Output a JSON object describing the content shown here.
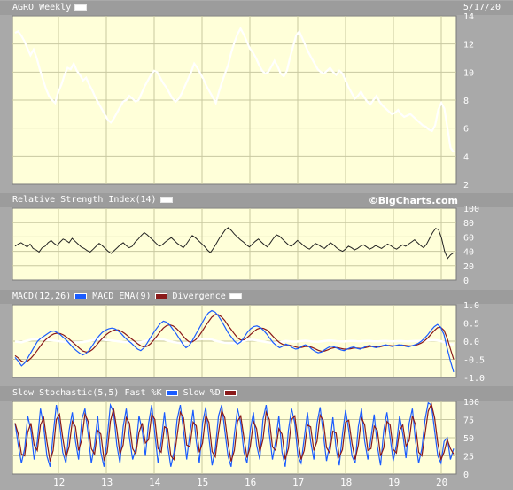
{
  "header": {
    "title": "AGRO Weekly",
    "date": "5/17/20",
    "brand": "©BigCharts.com"
  },
  "panels": {
    "rsi": {
      "title": "Relative Strength Index(14)"
    },
    "macd": {
      "title": "MACD(12,26)",
      "legend_ema": "MACD EMA(9)",
      "legend_div": "Divergence"
    },
    "stoch": {
      "title": "Slow Stochastic(5,5)",
      "legend_fast": "Fast %K",
      "legend_slow": "Slow %D"
    }
  },
  "colors": {
    "plot_bg": "#ffffd9",
    "grid": "#c8c8a0",
    "price": "#ffffff",
    "macd": "#1a5cff",
    "ema": "#8a1a1a",
    "fast": "#1a5cff",
    "slow": "#8a1a1a"
  },
  "x_axis": {
    "labels": [
      "12",
      "13",
      "14",
      "15",
      "16",
      "17",
      "18",
      "19",
      "20"
    ]
  },
  "chart_data": [
    {
      "type": "line",
      "name_key": "price",
      "ylim": [
        2,
        14
      ],
      "yticks": [
        "14",
        "12",
        "10",
        "8",
        "6",
        "4",
        "2"
      ],
      "values": [
        12.8,
        12.9,
        12.6,
        12.2,
        11.7,
        11.2,
        11.6,
        11.0,
        10.2,
        9.5,
        8.8,
        8.3,
        8.0,
        7.8,
        8.6,
        9.1,
        9.8,
        10.3,
        10.2,
        10.6,
        10.1,
        9.8,
        9.4,
        9.6,
        9.1,
        8.7,
        8.2,
        7.8,
        7.4,
        7.0,
        6.6,
        6.4,
        6.7,
        7.1,
        7.5,
        7.9,
        8.0,
        8.3,
        8.1,
        7.9,
        8.0,
        8.5,
        9.0,
        9.4,
        9.8,
        10.1,
        10.0,
        9.6,
        9.2,
        8.9,
        8.5,
        8.1,
        7.9,
        8.1,
        8.5,
        9.0,
        9.5,
        10.0,
        10.6,
        10.3,
        9.9,
        9.5,
        9.0,
        8.6,
        8.2,
        7.8,
        8.6,
        9.3,
        9.9,
        10.5,
        11.4,
        12.1,
        12.7,
        13.1,
        12.7,
        12.2,
        11.7,
        11.4,
        11.0,
        10.5,
        10.1,
        9.9,
        10.0,
        10.4,
        10.8,
        10.4,
        9.9,
        9.7,
        10.1,
        11.0,
        11.8,
        12.6,
        12.9,
        12.4,
        11.9,
        11.4,
        11.0,
        10.6,
        10.2,
        10.0,
        9.9,
        10.1,
        10.3,
        10.0,
        9.8,
        10.1,
        9.9,
        9.4,
        8.9,
        8.5,
        8.1,
        8.3,
        8.6,
        8.2,
        7.9,
        7.7,
        8.0,
        8.3,
        7.9,
        7.6,
        7.4,
        7.2,
        7.0,
        7.1,
        7.3,
        7.0,
        6.8,
        6.9,
        7.0,
        6.8,
        6.6,
        6.4,
        6.2,
        6.1,
        5.9,
        5.8,
        6.2,
        7.3,
        7.8,
        7.4,
        6.0,
        4.6,
        4.3
      ]
    },
    {
      "type": "line",
      "name_key": "rsi",
      "ylim": [
        0,
        100
      ],
      "yticks": [
        "100",
        "80",
        "60",
        "40",
        "20",
        "0"
      ],
      "values": [
        47,
        50,
        52,
        49,
        46,
        50,
        44,
        42,
        39,
        45,
        47,
        52,
        55,
        51,
        48,
        53,
        57,
        55,
        52,
        58,
        54,
        50,
        46,
        44,
        41,
        39,
        43,
        47,
        51,
        48,
        44,
        40,
        37,
        41,
        45,
        49,
        52,
        48,
        45,
        47,
        53,
        57,
        62,
        66,
        63,
        59,
        55,
        51,
        47,
        49,
        53,
        56,
        59,
        55,
        51,
        48,
        45,
        50,
        56,
        62,
        59,
        55,
        51,
        47,
        42,
        38,
        44,
        51,
        58,
        64,
        70,
        73,
        69,
        64,
        60,
        56,
        53,
        49,
        46,
        50,
        54,
        57,
        53,
        49,
        46,
        52,
        58,
        63,
        61,
        57,
        53,
        49,
        47,
        51,
        55,
        52,
        48,
        45,
        43,
        47,
        51,
        49,
        46,
        44,
        48,
        52,
        49,
        45,
        42,
        40,
        43,
        47,
        45,
        42,
        44,
        47,
        49,
        46,
        43,
        45,
        48,
        46,
        44,
        47,
        50,
        48,
        45,
        43,
        46,
        49,
        47,
        50,
        53,
        56,
        52,
        48,
        45,
        50,
        58,
        66,
        72,
        70,
        58,
        40,
        30,
        35,
        38
      ]
    },
    {
      "type": "line",
      "name_key": "macd",
      "ylim": [
        -1.0,
        1.0
      ],
      "yticks": [
        "1.0",
        "0.5",
        "0.0",
        "-0.5",
        "-1.0"
      ],
      "macd": [
        -0.45,
        -0.55,
        -0.68,
        -0.6,
        -0.45,
        -0.3,
        -0.15,
        0.0,
        0.08,
        0.14,
        0.2,
        0.26,
        0.28,
        0.24,
        0.18,
        0.1,
        0.02,
        -0.08,
        -0.18,
        -0.26,
        -0.33,
        -0.38,
        -0.34,
        -0.25,
        -0.12,
        0.02,
        0.14,
        0.24,
        0.3,
        0.34,
        0.36,
        0.34,
        0.28,
        0.2,
        0.1,
        0.02,
        -0.05,
        -0.14,
        -0.22,
        -0.26,
        -0.18,
        -0.05,
        0.1,
        0.24,
        0.36,
        0.48,
        0.55,
        0.52,
        0.44,
        0.32,
        0.2,
        0.06,
        -0.08,
        -0.18,
        -0.12,
        0.02,
        0.18,
        0.34,
        0.5,
        0.66,
        0.78,
        0.84,
        0.8,
        0.7,
        0.56,
        0.4,
        0.24,
        0.12,
        0.0,
        -0.08,
        -0.02,
        0.1,
        0.24,
        0.34,
        0.4,
        0.42,
        0.38,
        0.3,
        0.2,
        0.08,
        -0.04,
        -0.12,
        -0.18,
        -0.14,
        -0.08,
        -0.12,
        -0.18,
        -0.22,
        -0.2,
        -0.14,
        -0.1,
        -0.14,
        -0.22,
        -0.28,
        -0.32,
        -0.3,
        -0.24,
        -0.18,
        -0.14,
        -0.16,
        -0.2,
        -0.24,
        -0.26,
        -0.22,
        -0.18,
        -0.16,
        -0.2,
        -0.22,
        -0.18,
        -0.14,
        -0.12,
        -0.16,
        -0.18,
        -0.15,
        -0.12,
        -0.1,
        -0.13,
        -0.15,
        -0.12,
        -0.1,
        -0.11,
        -0.14,
        -0.16,
        -0.13,
        -0.1,
        -0.06,
        0.0,
        0.08,
        0.18,
        0.3,
        0.4,
        0.46,
        0.38,
        0.18,
        -0.2,
        -0.55,
        -0.85
      ],
      "ema": [
        -0.4,
        -0.46,
        -0.55,
        -0.58,
        -0.54,
        -0.46,
        -0.36,
        -0.24,
        -0.12,
        0.0,
        0.08,
        0.15,
        0.2,
        0.22,
        0.21,
        0.17,
        0.11,
        0.04,
        -0.04,
        -0.12,
        -0.2,
        -0.27,
        -0.3,
        -0.29,
        -0.23,
        -0.14,
        -0.03,
        0.07,
        0.16,
        0.23,
        0.28,
        0.31,
        0.31,
        0.27,
        0.21,
        0.14,
        0.07,
        0.0,
        -0.07,
        -0.13,
        -0.16,
        -0.14,
        -0.07,
        0.03,
        0.14,
        0.26,
        0.36,
        0.43,
        0.45,
        0.42,
        0.35,
        0.26,
        0.15,
        0.05,
        -0.02,
        -0.02,
        0.04,
        0.14,
        0.27,
        0.41,
        0.54,
        0.66,
        0.73,
        0.73,
        0.67,
        0.57,
        0.44,
        0.32,
        0.2,
        0.09,
        0.03,
        0.04,
        0.1,
        0.18,
        0.26,
        0.33,
        0.36,
        0.35,
        0.31,
        0.23,
        0.13,
        0.04,
        -0.04,
        -0.09,
        -0.1,
        -0.11,
        -0.13,
        -0.16,
        -0.18,
        -0.17,
        -0.15,
        -0.15,
        -0.17,
        -0.21,
        -0.25,
        -0.28,
        -0.27,
        -0.24,
        -0.2,
        -0.18,
        -0.18,
        -0.2,
        -0.22,
        -0.22,
        -0.21,
        -0.19,
        -0.19,
        -0.2,
        -0.19,
        -0.17,
        -0.15,
        -0.15,
        -0.16,
        -0.16,
        -0.14,
        -0.12,
        -0.12,
        -0.13,
        -0.13,
        -0.12,
        -0.11,
        -0.12,
        -0.13,
        -0.13,
        -0.12,
        -0.09,
        -0.05,
        0.01,
        0.09,
        0.19,
        0.29,
        0.37,
        0.38,
        0.3,
        0.08,
        -0.22,
        -0.5
      ],
      "divergence": [
        -0.05,
        -0.09,
        -0.13,
        -0.02,
        0.09,
        0.16,
        0.21,
        0.24,
        0.2,
        0.14,
        0.12,
        0.11,
        0.08,
        0.02,
        -0.03,
        -0.07,
        -0.09,
        -0.12,
        -0.14,
        -0.14,
        -0.13,
        -0.11,
        -0.04,
        0.04,
        0.11,
        0.16,
        0.17,
        0.17,
        0.14,
        0.11,
        0.08,
        0.03,
        -0.03,
        -0.07,
        -0.11,
        -0.12,
        -0.12,
        -0.14,
        -0.15,
        -0.13,
        -0.02,
        0.09,
        0.17,
        0.21,
        0.22,
        0.22,
        0.19,
        0.09,
        -0.01,
        -0.1,
        -0.15,
        -0.2,
        -0.23,
        -0.23,
        -0.1,
        0.04,
        0.14,
        0.2,
        0.23,
        0.25,
        0.24,
        0.18,
        0.07,
        -0.03,
        -0.11,
        -0.17,
        -0.2,
        -0.2,
        -0.2,
        -0.17,
        -0.05,
        0.06,
        0.14,
        0.16,
        0.14,
        0.09,
        0.02,
        -0.05,
        -0.11,
        -0.15,
        -0.17,
        -0.16,
        -0.14,
        -0.05,
        0.02,
        -0.01,
        -0.05,
        -0.06,
        -0.02,
        0.03,
        0.05,
        0.01,
        -0.05,
        -0.07,
        -0.07,
        -0.02,
        0.03,
        0.06,
        0.06,
        0.02,
        -0.02,
        -0.04,
        -0.04,
        -0.01,
        0.03,
        0.03,
        -0.01,
        -0.02,
        0.01,
        0.03,
        0.03,
        -0.01,
        -0.02,
        -0.01,
        0.02,
        0.02,
        0.0,
        -0.02,
        0.0,
        0.01,
        0.01,
        -0.02,
        -0.03,
        0.0,
        0.02,
        0.03,
        0.05,
        0.07,
        0.09,
        0.11,
        0.11,
        0.09,
        0.0,
        -0.12,
        -0.28,
        -0.33,
        -0.35
      ]
    },
    {
      "type": "line",
      "name_key": "stoch",
      "ylim": [
        0,
        100
      ],
      "yticks": [
        "100",
        "75",
        "50",
        "25",
        "0"
      ],
      "fast": [
        70,
        40,
        15,
        35,
        80,
        60,
        20,
        45,
        90,
        65,
        25,
        10,
        55,
        95,
        70,
        30,
        15,
        60,
        85,
        45,
        20,
        75,
        90,
        55,
        15,
        40,
        80,
        30,
        10,
        50,
        95,
        85,
        40,
        15,
        65,
        90,
        50,
        20,
        35,
        80,
        60,
        25,
        70,
        95,
        55,
        15,
        45,
        85,
        40,
        10,
        30,
        75,
        95,
        60,
        20,
        55,
        88,
        45,
        15,
        70,
        92,
        50,
        12,
        35,
        80,
        95,
        60,
        25,
        10,
        55,
        90,
        70,
        30,
        15,
        60,
        85,
        40,
        20,
        75,
        95,
        55,
        20,
        45,
        80,
        30,
        10,
        60,
        90,
        70,
        25,
        15,
        50,
        85,
        45,
        20,
        70,
        92,
        55,
        18,
        40,
        78,
        35,
        12,
        55,
        88,
        60,
        25,
        15,
        65,
        90,
        45,
        20,
        50,
        82,
        38,
        12,
        60,
        85,
        50,
        18,
        40,
        80,
        55,
        22,
        70,
        90,
        45,
        15,
        35,
        75,
        98,
        95,
        60,
        25,
        15,
        45,
        50,
        20,
        35
      ]
    }
  ]
}
